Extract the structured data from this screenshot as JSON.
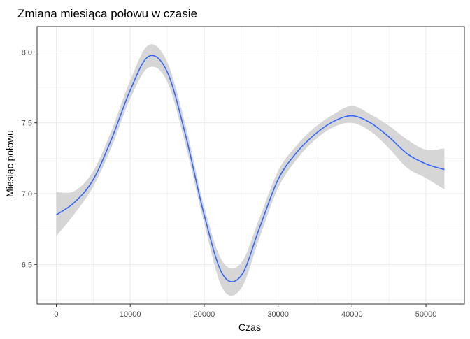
{
  "chart_data": {
    "type": "line",
    "title": "Zmiana miesiąca połowu w czasie",
    "xlabel": "Czas",
    "ylabel": "Miesiąc połowu",
    "xlim": [
      -2600,
      55200
    ],
    "ylim": [
      6.22,
      8.18
    ],
    "x_ticks": [
      0,
      10000,
      20000,
      30000,
      40000,
      50000
    ],
    "x_tick_labels": [
      "0",
      "10000",
      "20000",
      "30000",
      "40000",
      "50000"
    ],
    "y_ticks": [
      6.5,
      7.0,
      7.5,
      8.0
    ],
    "y_tick_labels": [
      "6.5",
      "7.0",
      "7.5",
      "8.0"
    ],
    "x_minor_ticks": [
      5000,
      15000,
      25000,
      35000,
      45000
    ],
    "y_minor_ticks": [
      6.25,
      6.75,
      7.25,
      7.75
    ],
    "grid": true,
    "legend": "none",
    "series": [
      {
        "style": "smooth-with-confidence-band",
        "x": [
          0,
          2500,
          5000,
          7500,
          10000,
          12500,
          15000,
          17500,
          20000,
          22500,
          25000,
          27500,
          30000,
          32500,
          35000,
          37500,
          40000,
          42500,
          45000,
          47500,
          50000,
          52500
        ],
        "y": [
          6.85,
          6.94,
          7.1,
          7.39,
          7.73,
          7.97,
          7.86,
          7.41,
          6.85,
          6.43,
          6.42,
          6.76,
          7.1,
          7.29,
          7.42,
          7.51,
          7.55,
          7.5,
          7.4,
          7.28,
          7.21,
          7.17
        ],
        "ymin": [
          6.7,
          6.86,
          7.05,
          7.33,
          7.67,
          7.89,
          7.79,
          7.34,
          6.79,
          6.33,
          6.33,
          6.69,
          7.04,
          7.24,
          7.38,
          7.47,
          7.5,
          7.44,
          7.32,
          7.18,
          7.11,
          7.03
        ],
        "ymax": [
          7.01,
          7.02,
          7.16,
          7.45,
          7.8,
          8.05,
          7.93,
          7.48,
          6.91,
          6.52,
          6.51,
          6.83,
          7.16,
          7.34,
          7.47,
          7.56,
          7.62,
          7.56,
          7.48,
          7.38,
          7.31,
          7.32
        ]
      }
    ],
    "colors": {
      "line": "#3366ff",
      "band": "#d6d6d6",
      "grid": "#ebebeb",
      "axis": "#333333",
      "tick_text": "#4d4d4d",
      "label_text": "#000000"
    }
  }
}
